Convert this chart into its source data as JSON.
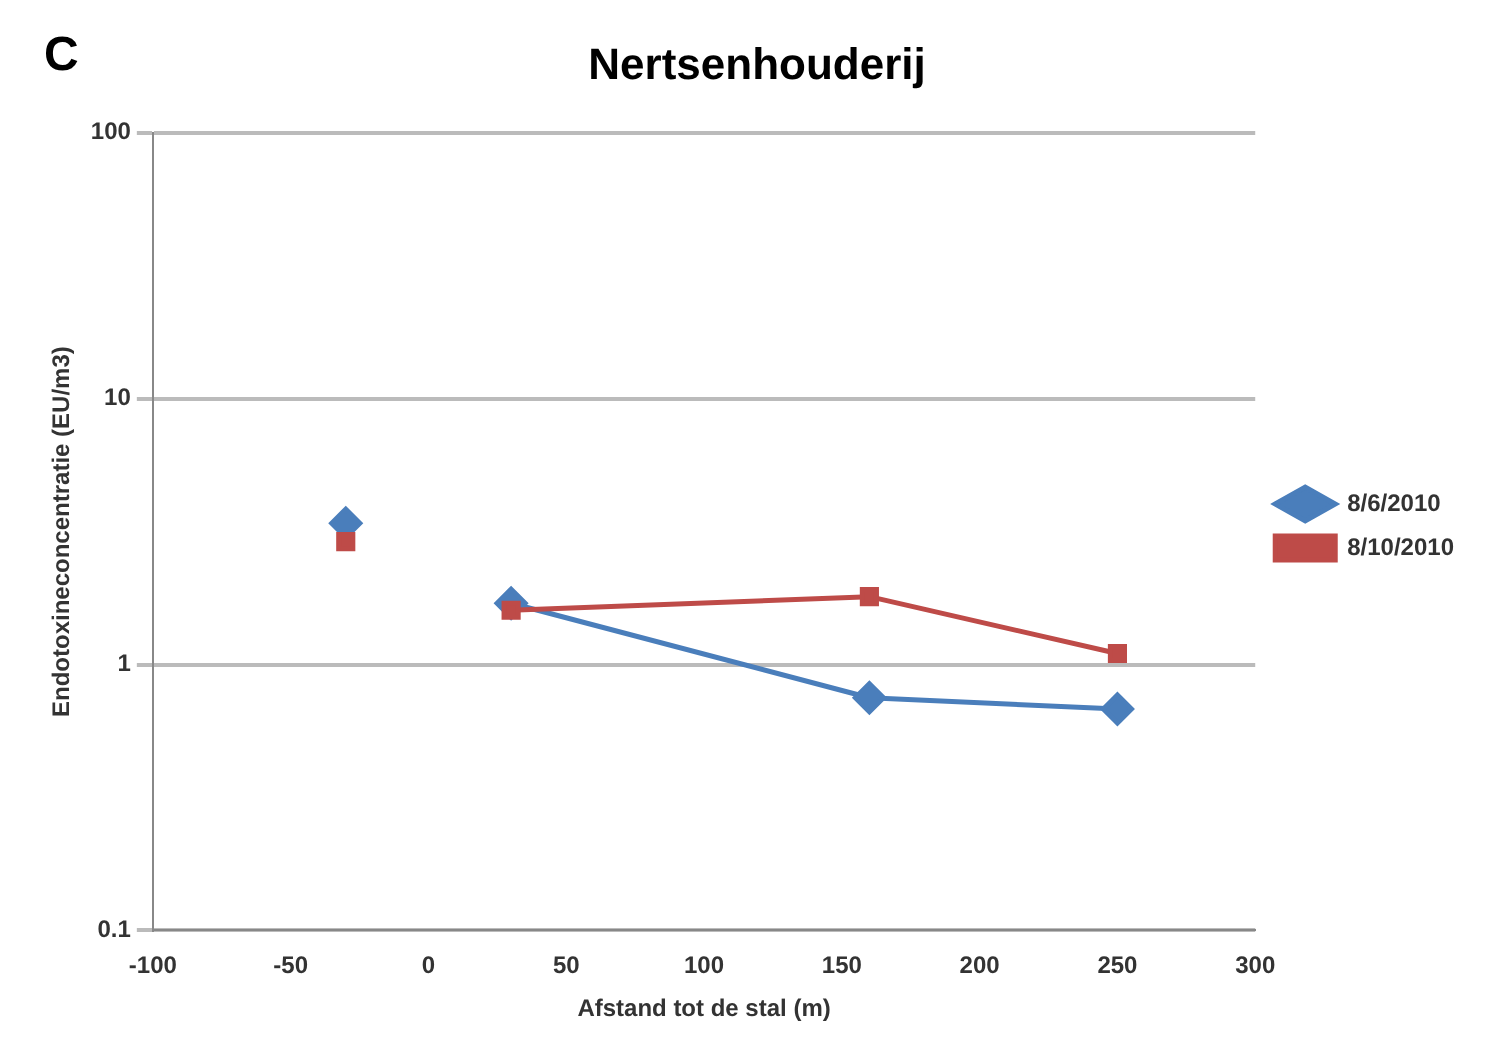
{
  "chart_data": {
    "type": "line",
    "title": "Nertsenhouderij",
    "xlabel": "Afstand tot de stal (m)",
    "ylabel": "Endotoxineconcentratie (EU/m3)",
    "annotations": [
      "C"
    ],
    "x": [
      -30,
      0,
      30,
      160,
      250
    ],
    "series": [
      {
        "name": "8/6/2010",
        "color": "#4a7ebb",
        "marker": "diamond",
        "values": [
          3.4,
          null,
          1.7,
          0.75,
          0.68
        ]
      },
      {
        "name": "8/10/2010",
        "color": "#be4b48",
        "marker": "square",
        "values": [
          2.9,
          null,
          1.6,
          1.8,
          1.1
        ]
      }
    ],
    "log": "y",
    "xlim": [
      -100,
      300
    ],
    "xticks": [
      -100,
      -50,
      0,
      50,
      100,
      150,
      200,
      250,
      300
    ],
    "ylim": [
      0.1,
      100
    ],
    "yticks": [
      0.1,
      1,
      10,
      100
    ],
    "grid": "y",
    "legend": "right",
    "line_style": "solid"
  }
}
